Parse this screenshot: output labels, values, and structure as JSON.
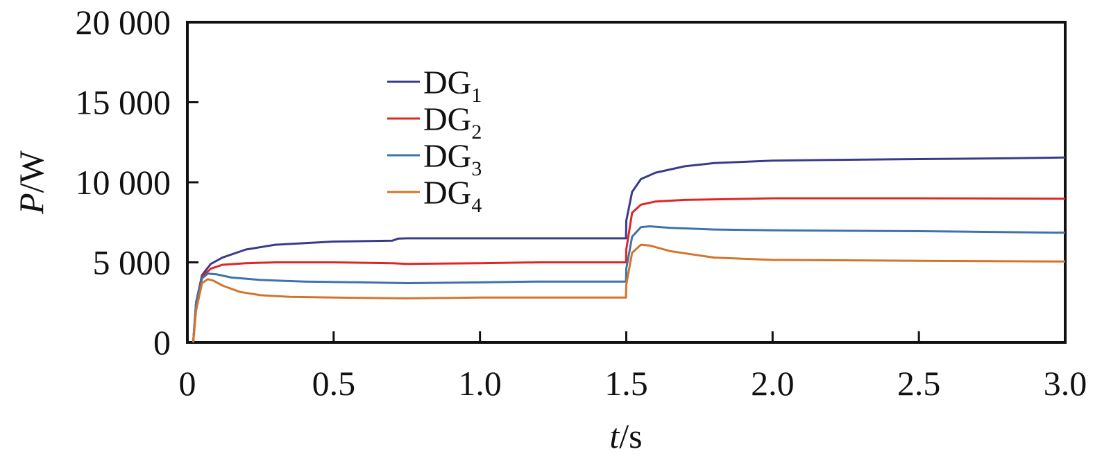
{
  "chart_data": {
    "type": "line",
    "xlabel": {
      "var": "t",
      "unit": "/s"
    },
    "ylabel": {
      "var": "P",
      "unit": "/W"
    },
    "xlim": [
      0,
      3.0
    ],
    "ylim": [
      0,
      20000
    ],
    "xticks": [
      0,
      0.5,
      1.0,
      1.5,
      2.0,
      2.5,
      3.0
    ],
    "xtick_labels": [
      "0",
      "0.5",
      "1.0",
      "1.5",
      "2.0",
      "2.5",
      "3.0"
    ],
    "yticks": [
      0,
      5000,
      10000,
      15000,
      20000
    ],
    "ytick_labels": [
      "0",
      "5 000",
      "10 000",
      "15 000",
      "20 000"
    ],
    "grid": false,
    "legend_position": "upper-left",
    "series": [
      {
        "name": "DG1",
        "base": "DG",
        "sub": "1",
        "color": "#3a3a8c",
        "x": [
          0.02,
          0.03,
          0.05,
          0.08,
          0.12,
          0.2,
          0.3,
          0.5,
          0.7,
          0.72,
          0.75,
          1.0,
          1.2,
          1.499,
          1.5,
          1.52,
          1.55,
          1.6,
          1.7,
          1.8,
          2.0,
          2.2,
          2.5,
          2.8,
          3.0
        ],
        "y": [
          0,
          2500,
          4200,
          4900,
          5300,
          5800,
          6100,
          6300,
          6350,
          6480,
          6500,
          6500,
          6500,
          6500,
          7600,
          9400,
          10200,
          10600,
          11000,
          11200,
          11350,
          11400,
          11450,
          11500,
          11550
        ]
      },
      {
        "name": "DG2",
        "base": "DG",
        "sub": "2",
        "color": "#e02525",
        "x": [
          0.02,
          0.03,
          0.05,
          0.08,
          0.12,
          0.2,
          0.3,
          0.5,
          0.7,
          0.75,
          1.0,
          1.2,
          1.499,
          1.5,
          1.52,
          1.55,
          1.6,
          1.7,
          2.0,
          2.5,
          3.0
        ],
        "y": [
          0,
          2500,
          4100,
          4600,
          4850,
          4950,
          5000,
          5000,
          4950,
          4900,
          4950,
          5000,
          5000,
          5800,
          8100,
          8600,
          8800,
          8900,
          9000,
          9000,
          8980
        ]
      },
      {
        "name": "DG3",
        "base": "DG",
        "sub": "3",
        "color": "#3d72ac",
        "x": [
          0.02,
          0.03,
          0.05,
          0.07,
          0.1,
          0.15,
          0.25,
          0.4,
          0.6,
          0.75,
          1.0,
          1.2,
          1.499,
          1.5,
          1.52,
          1.55,
          1.58,
          1.65,
          1.8,
          2.0,
          2.5,
          3.0
        ],
        "y": [
          0,
          2500,
          4000,
          4300,
          4250,
          4050,
          3900,
          3800,
          3750,
          3700,
          3750,
          3800,
          3800,
          4600,
          6600,
          7200,
          7250,
          7150,
          7050,
          7000,
          6950,
          6850
        ]
      },
      {
        "name": "DG4",
        "base": "DG",
        "sub": "4",
        "color": "#d4742b",
        "x": [
          0.02,
          0.03,
          0.05,
          0.07,
          0.09,
          0.12,
          0.18,
          0.25,
          0.35,
          0.5,
          0.75,
          1.0,
          1.2,
          1.499,
          1.5,
          1.52,
          1.55,
          1.58,
          1.65,
          1.8,
          2.0,
          2.5,
          3.0
        ],
        "y": [
          0,
          2000,
          3700,
          3950,
          3850,
          3550,
          3150,
          2950,
          2850,
          2800,
          2750,
          2800,
          2800,
          2800,
          3600,
          5600,
          6100,
          6050,
          5700,
          5300,
          5150,
          5100,
          5050
        ]
      }
    ]
  }
}
